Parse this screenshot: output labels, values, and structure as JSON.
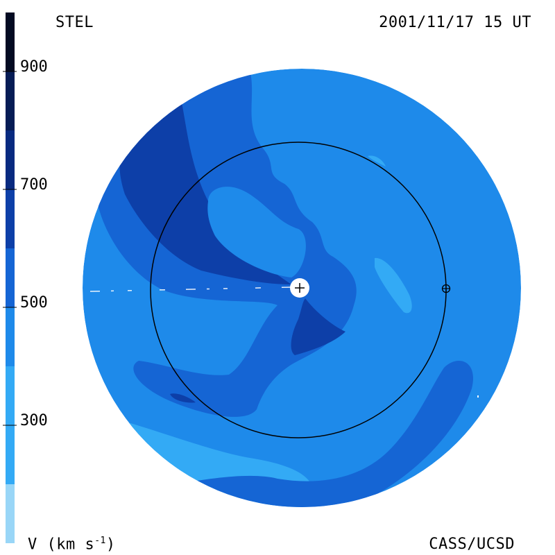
{
  "header": {
    "instrument_label": "STEL",
    "timestamp": "2001/11/17 15 UT"
  },
  "footer": {
    "credit": "CASS/UCSD",
    "unit_prefix": "V (km s",
    "unit_exponent": "-1",
    "unit_suffix": ")"
  },
  "colorbar": {
    "quantity": "V",
    "unit": "km s-1",
    "tick_labels": [
      "900",
      "700",
      "500",
      "300"
    ],
    "bands": [
      {
        "level": "low",
        "color": "#99d6f7"
      },
      {
        "level": "300-400",
        "color": "#33aaf5"
      },
      {
        "level": "400-500",
        "color": "#1e8aea"
      },
      {
        "level": "500-600",
        "color": "#1565d4"
      },
      {
        "level": "600-700",
        "color": "#0d3fa8"
      },
      {
        "level": "700-800",
        "color": "#082a80"
      },
      {
        "level": "800-900",
        "color": "#061c55"
      },
      {
        "level": "900+",
        "color": "#030a22"
      }
    ]
  },
  "map": {
    "background_color": "#1e8aea",
    "markers": [
      {
        "name": "sun",
        "symbol": "+"
      },
      {
        "name": "earth",
        "symbol": "⊕"
      }
    ],
    "earth_orbit": "circle"
  }
}
